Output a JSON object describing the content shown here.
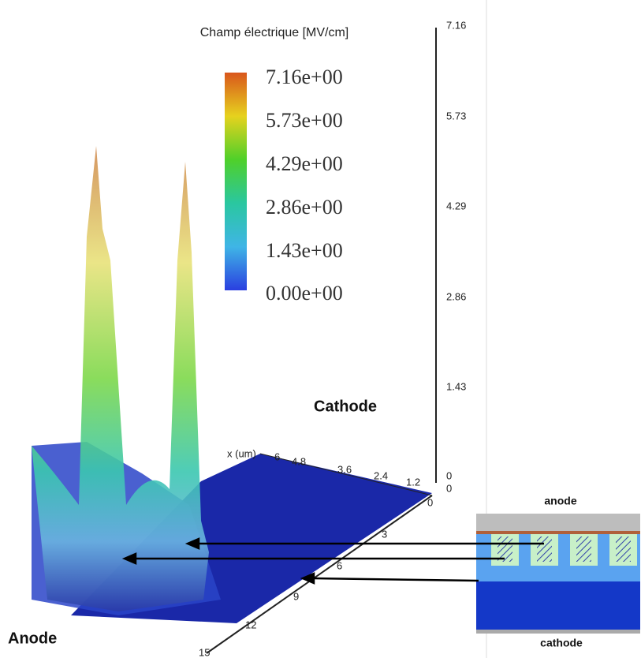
{
  "colorbar": {
    "title": "Champ électrique [MV/cm]",
    "labels": [
      "7.16e+00",
      "5.73e+00",
      "4.29e+00",
      "2.86e+00",
      "1.43e+00",
      "0.00e+00"
    ]
  },
  "z_axis": {
    "labels": [
      "7.16",
      "5.73",
      "4.29",
      "2.86",
      "1.43",
      "0"
    ]
  },
  "x_axis": {
    "title": "x (um)",
    "labels": [
      "6",
      "4.8",
      "3.6",
      "2.4",
      "1.2",
      "0"
    ]
  },
  "y_axis": {
    "labels": [
      "0",
      "3",
      "6",
      "9",
      "12",
      "15"
    ]
  },
  "annotations": {
    "cathode": "Cathode",
    "anode": "Anode"
  },
  "inset": {
    "top": "anode",
    "bottom": "cathode"
  }
}
